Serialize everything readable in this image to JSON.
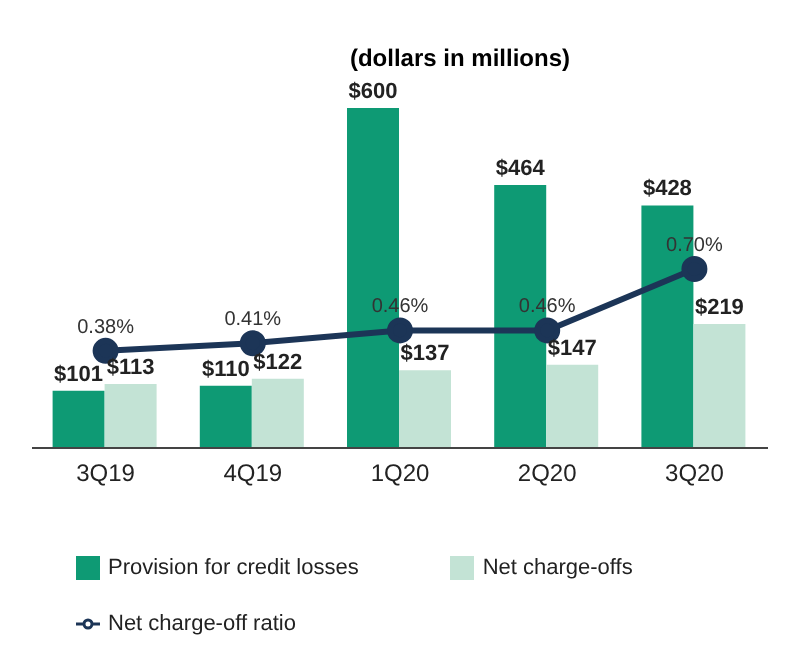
{
  "chart_data": {
    "type": "bar",
    "title": "(dollars in millions)",
    "categories": [
      "3Q19",
      "4Q19",
      "1Q20",
      "2Q20",
      "3Q20"
    ],
    "series": [
      {
        "name": "Provision for credit losses",
        "color": "#0e9a74",
        "values": [
          101,
          110,
          600,
          464,
          428
        ],
        "value_labels": [
          "$101",
          "$110",
          "$600",
          "$464",
          "$428"
        ]
      },
      {
        "name": "Net charge-offs",
        "color": "#c3e3d5",
        "values": [
          113,
          122,
          137,
          147,
          219
        ],
        "value_labels": [
          "$113",
          "$122",
          "$137",
          "$147",
          "$219"
        ]
      },
      {
        "name": "Net charge-off ratio",
        "type": "line",
        "axis": "y2",
        "color": "#1c3557",
        "marker": "circle",
        "values": [
          0.38,
          0.41,
          0.46,
          0.46,
          0.7
        ],
        "value_labels": [
          "0.38%",
          "0.41%",
          "0.46%",
          "0.46%",
          "0.70%"
        ]
      }
    ],
    "grid": false,
    "legend": "bottom"
  }
}
